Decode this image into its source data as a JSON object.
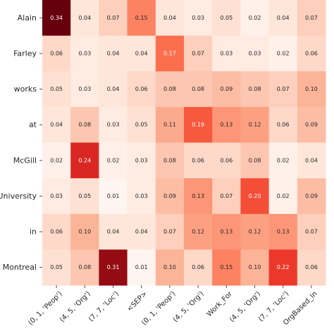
{
  "chart_data": {
    "type": "heatmap",
    "title": "",
    "xlabel": "",
    "ylabel": "",
    "x_labels": [
      "(0, 1, 'Peop')",
      "(4, 5, 'Org')",
      "(7, 7, 'Loc')",
      "<SEP>",
      "(0, 1, 'Peop')",
      "(4, 5, 'Org')",
      "Work_For",
      "(4, 5, 'Org')",
      "(7, 7, 'Loc')",
      "OrgBased_In"
    ],
    "y_labels": [
      "Alain",
      "Farley",
      "works",
      "at",
      "McGill",
      "University",
      "in",
      "Montreal"
    ],
    "values": [
      [
        0.34,
        0.04,
        0.07,
        0.15,
        0.04,
        0.03,
        0.05,
        0.02,
        0.04,
        0.07
      ],
      [
        0.06,
        0.03,
        0.04,
        0.04,
        0.17,
        0.07,
        0.03,
        0.03,
        0.02,
        0.06
      ],
      [
        0.05,
        0.03,
        0.04,
        0.06,
        0.08,
        0.08,
        0.09,
        0.08,
        0.07,
        0.1
      ],
      [
        0.04,
        0.08,
        0.03,
        0.05,
        0.11,
        0.19,
        0.13,
        0.12,
        0.06,
        0.09
      ],
      [
        0.02,
        0.24,
        0.02,
        0.03,
        0.08,
        0.06,
        0.06,
        0.08,
        0.02,
        0.04
      ],
      [
        0.03,
        0.05,
        0.01,
        0.03,
        0.09,
        0.13,
        0.07,
        0.2,
        0.02,
        0.09
      ],
      [
        0.06,
        0.1,
        0.04,
        0.04,
        0.07,
        0.12,
        0.13,
        0.12,
        0.13,
        0.07
      ],
      [
        0.05,
        0.08,
        0.31,
        0.01,
        0.1,
        0.06,
        0.15,
        0.1,
        0.22,
        0.06
      ]
    ],
    "colormap": "Reds",
    "colors": {
      "low": "#fff5f0",
      "high": "#67000d"
    },
    "cell_labels": true,
    "grid": false,
    "legend": "none"
  }
}
